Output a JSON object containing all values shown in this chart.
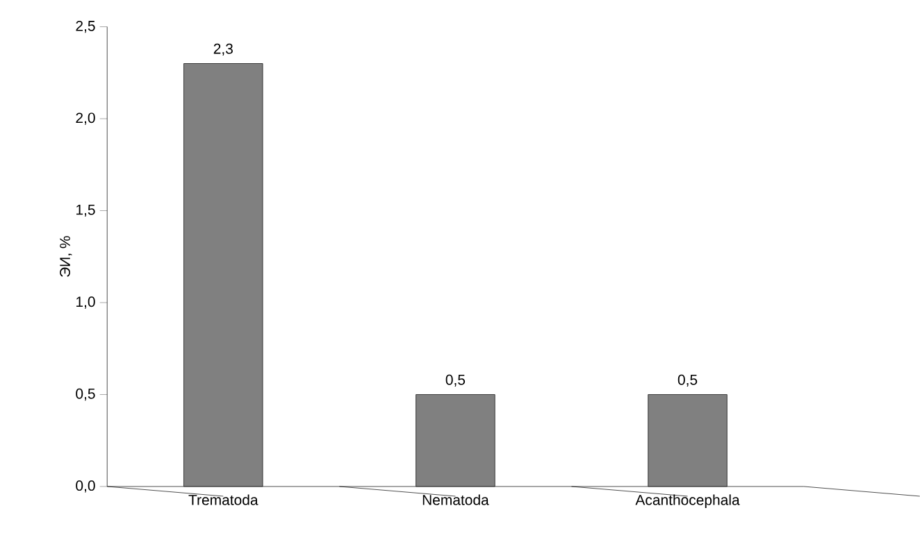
{
  "chart_data": {
    "type": "bar",
    "categories": [
      "Trematoda",
      "Nematoda",
      "Acanthocephala"
    ],
    "values": [
      2.3,
      0.5,
      0.5
    ],
    "value_labels": [
      "2,3",
      "0,5",
      "0,5"
    ],
    "color": "#808080",
    "ylabel": "ЭИ, %",
    "ylim": [
      0,
      2.5
    ],
    "yticks": [
      {
        "value": 0,
        "label": "0,0"
      },
      {
        "value": 0.5,
        "label": "0,5"
      },
      {
        "value": 1.0,
        "label": "1,0"
      },
      {
        "value": 1.5,
        "label": "1,5"
      },
      {
        "value": 2.0,
        "label": "2,0"
      },
      {
        "value": 2.5,
        "label": "2,5"
      }
    ],
    "grid": false
  }
}
